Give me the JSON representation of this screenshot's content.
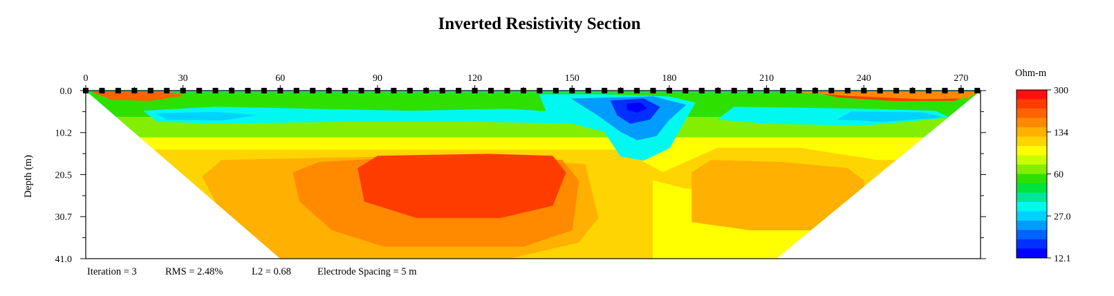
{
  "chart_data": {
    "type": "heatmap",
    "title": "Inverted Resistivity Section",
    "xlabel": "",
    "ylabel": "Depth (m)",
    "x_range": [
      0,
      276
    ],
    "y_range": [
      0.0,
      41.0
    ],
    "x_ticks": [
      "0",
      "30",
      "60",
      "90",
      "120",
      "150",
      "180",
      "210",
      "240",
      "270"
    ],
    "y_ticks": [
      "0.0",
      "10.2",
      "20.5",
      "30.7",
      "41.0"
    ],
    "electrode_spacing_m": 5,
    "electrode_count": 56,
    "colorbar": {
      "title": "Ohm-m",
      "labels": [
        "300",
        "134",
        "60",
        "27.0",
        "12.1"
      ],
      "colors_high_to_low": [
        "#ff1010",
        "#ff3c00",
        "#ff6300",
        "#ff8a00",
        "#ffb000",
        "#ffd400",
        "#ffff00",
        "#c8ff00",
        "#84ee00",
        "#2ee000",
        "#00e23c",
        "#00e69a",
        "#00f8f0",
        "#00d2ff",
        "#009cff",
        "#0062ff",
        "#0030ff",
        "#0000ff"
      ]
    },
    "footer": {
      "iteration": "Iteration = 3",
      "rms": "RMS = 2.48%",
      "l2": "L2 = 0.68",
      "spacing": "Electrode Spacing = 5 m"
    },
    "regions": [
      {
        "name": "background",
        "band": 11,
        "polygon": [
          [
            0,
            0
          ],
          [
            276,
            0
          ],
          [
            276,
            41
          ],
          [
            0,
            41
          ]
        ]
      },
      {
        "name": "shallow-green",
        "band": 9,
        "polygon": [
          [
            0,
            0.5
          ],
          [
            276,
            0.5
          ],
          [
            276,
            10
          ],
          [
            0,
            10
          ]
        ]
      },
      {
        "name": "upper-yellow-green",
        "band": 8,
        "polygon": [
          [
            0,
            6.5
          ],
          [
            276,
            6.5
          ],
          [
            276,
            20
          ],
          [
            0,
            20
          ]
        ]
      },
      {
        "name": "yellow-layer",
        "band": 6,
        "polygon": [
          [
            0,
            11.5
          ],
          [
            276,
            11.5
          ],
          [
            276,
            41
          ],
          [
            0,
            41
          ]
        ]
      },
      {
        "name": "gold-main",
        "band": 5,
        "polygon": [
          [
            0,
            14.5
          ],
          [
            165,
            14.5
          ],
          [
            178,
            20
          ],
          [
            195,
            14
          ],
          [
            220,
            14
          ],
          [
            244,
            17
          ],
          [
            276,
            17
          ],
          [
            276,
            41
          ],
          [
            0,
            41
          ]
        ]
      },
      {
        "name": "gold-right-body",
        "band": 6,
        "polygon": [
          [
            175,
            22
          ],
          [
            185,
            24
          ],
          [
            225,
            24
          ],
          [
            238,
            26
          ],
          [
            276,
            24
          ],
          [
            276,
            41
          ],
          [
            175,
            41
          ]
        ]
      },
      {
        "name": "orange-left",
        "band": 4,
        "polygon": [
          [
            36,
            21
          ],
          [
            42,
            17
          ],
          [
            104,
            16
          ],
          [
            154,
            18
          ],
          [
            158,
            31
          ],
          [
            152,
            37
          ],
          [
            130,
            41
          ],
          [
            55,
            41
          ],
          [
            42,
            30
          ]
        ]
      },
      {
        "name": "orange-right",
        "band": 4,
        "polygon": [
          [
            187,
            20
          ],
          [
            193,
            17
          ],
          [
            215,
            17.5
          ],
          [
            235,
            19
          ],
          [
            240,
            22
          ],
          [
            240,
            30
          ],
          [
            232,
            34
          ],
          [
            205,
            34
          ],
          [
            187,
            32
          ]
        ]
      },
      {
        "name": "orange-deep",
        "band": 3,
        "polygon": [
          [
            64,
            20
          ],
          [
            72,
            17.5
          ],
          [
            106,
            16
          ],
          [
            147,
            17
          ],
          [
            152,
            22
          ],
          [
            150,
            34
          ],
          [
            135,
            38
          ],
          [
            92,
            38
          ],
          [
            76,
            34
          ],
          [
            66,
            27
          ]
        ]
      },
      {
        "name": "red-core",
        "band": 1,
        "polygon": [
          [
            84,
            19
          ],
          [
            90,
            16
          ],
          [
            124,
            15.5
          ],
          [
            144,
            16
          ],
          [
            148,
            20
          ],
          [
            144,
            28
          ],
          [
            128,
            31
          ],
          [
            102,
            31
          ],
          [
            86,
            27
          ]
        ]
      },
      {
        "name": "cyan-band-left",
        "band": 12,
        "polygon": [
          [
            18,
            5
          ],
          [
            40,
            4
          ],
          [
            70,
            4.5
          ],
          [
            100,
            5
          ],
          [
            130,
            4.5
          ],
          [
            150,
            5.5
          ],
          [
            160,
            5
          ],
          [
            150,
            8
          ],
          [
            120,
            7.5
          ],
          [
            80,
            7.5
          ],
          [
            40,
            8
          ],
          [
            22,
            7.5
          ]
        ]
      },
      {
        "name": "blue-left-lens",
        "band": 13,
        "polygon": [
          [
            22,
            5.6
          ],
          [
            40,
            5.3
          ],
          [
            52,
            6
          ],
          [
            42,
            7.2
          ],
          [
            25,
            7
          ]
        ]
      },
      {
        "name": "cyan-central",
        "band": 12,
        "polygon": [
          [
            140,
            1
          ],
          [
            160,
            1
          ],
          [
            180,
            1.5
          ],
          [
            188,
            3
          ],
          [
            185,
            7
          ],
          [
            180,
            14
          ],
          [
            172,
            17
          ],
          [
            165,
            16
          ],
          [
            160,
            10
          ],
          [
            150,
            8
          ],
          [
            142,
            5
          ]
        ]
      },
      {
        "name": "blue-central",
        "band": 14,
        "polygon": [
          [
            150,
            2
          ],
          [
            175,
            1.5
          ],
          [
            185,
            3.5
          ],
          [
            180,
            7
          ],
          [
            176,
            11
          ],
          [
            170,
            12
          ],
          [
            165,
            10
          ],
          [
            158,
            6
          ]
        ]
      },
      {
        "name": "deep-blue-central",
        "band": 16,
        "polygon": [
          [
            162,
            2.5
          ],
          [
            172,
            2
          ],
          [
            177,
            4
          ],
          [
            174,
            7
          ],
          [
            168,
            8
          ],
          [
            164,
            6
          ]
        ]
      },
      {
        "name": "navy-central",
        "band": 17,
        "polygon": [
          [
            167,
            3.2
          ],
          [
            171,
            3
          ],
          [
            173,
            4.3
          ],
          [
            170,
            5.3
          ],
          [
            167,
            4.6
          ]
        ]
      },
      {
        "name": "cyan-band-right",
        "band": 12,
        "polygon": [
          [
            200,
            4
          ],
          [
            240,
            4.5
          ],
          [
            262,
            5
          ],
          [
            266,
            6.5
          ],
          [
            240,
            8.5
          ],
          [
            210,
            8
          ],
          [
            195,
            7
          ]
        ]
      },
      {
        "name": "blue-right-lens",
        "band": 13,
        "polygon": [
          [
            236,
            5.2
          ],
          [
            258,
            5.4
          ],
          [
            264,
            6.5
          ],
          [
            246,
            7.5
          ],
          [
            232,
            7
          ]
        ]
      },
      {
        "name": "red-surface-left",
        "band": 2,
        "polygon": [
          [
            2,
            0.3
          ],
          [
            25,
            0.3
          ],
          [
            30,
            1.2
          ],
          [
            20,
            2.4
          ],
          [
            8,
            2.2
          ]
        ]
      },
      {
        "name": "red-surface-right",
        "band": 1,
        "polygon": [
          [
            225,
            0.3
          ],
          [
            274,
            0.3
          ],
          [
            268,
            2.4
          ],
          [
            250,
            2.5
          ],
          [
            232,
            1.6
          ]
        ]
      },
      {
        "name": "orange-surface-right",
        "band": 3,
        "polygon": [
          [
            220,
            0.3
          ],
          [
            275,
            0.3
          ],
          [
            272,
            1.8
          ],
          [
            258,
            2
          ],
          [
            235,
            1.2
          ]
        ]
      }
    ]
  }
}
